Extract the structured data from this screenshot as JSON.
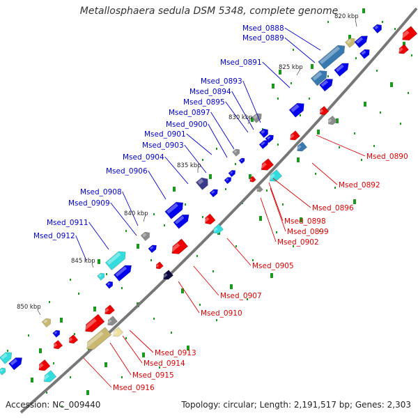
{
  "title": "Metallosphaera sedula DSM 5348, complete genome",
  "accession": "Accession: NC_009440",
  "topology": "Topology: circular; Length: 2,191,517 bp; Genes: 2,303",
  "colors": {
    "forward_label": "#0000cc",
    "reverse_label": "#dd0000",
    "backbone": "#777777",
    "forward_gene": "#0000ee",
    "reverse_gene": "#ee0000",
    "cyan_gene": "#33dddd",
    "tan_gene": "#c8b870",
    "steel_gene": "#3a78b0",
    "gray_gene": "#8c8c8c",
    "tick_green": "#1a9a1a"
  },
  "kbp_ticks": [
    "820 kbp",
    "825 kbp",
    "830 kbp",
    "835 kbp",
    "840 kbp",
    "845 kbp",
    "850 kbp"
  ],
  "forward_labels": [
    "Msed_0888",
    "Msed_0889",
    "Msed_0891",
    "Msed_0893",
    "Msed_0894",
    "Msed_0895",
    "Msed_0897",
    "Msed_0900",
    "Msed_0901",
    "Msed_0903",
    "Msed_0904",
    "Msed_0906",
    "Msed_0908",
    "Msed_0909",
    "Msed_0911",
    "Msed_0912"
  ],
  "reverse_labels": [
    "Msed_0890",
    "Msed_0892",
    "Msed_0896",
    "Msed_0898",
    "Msed_0899",
    "Msed_0902",
    "Msed_0905",
    "Msed_0907",
    "Msed_0910",
    "Msed_0913",
    "Msed_0914",
    "Msed_0915",
    "Msed_0916"
  ]
}
